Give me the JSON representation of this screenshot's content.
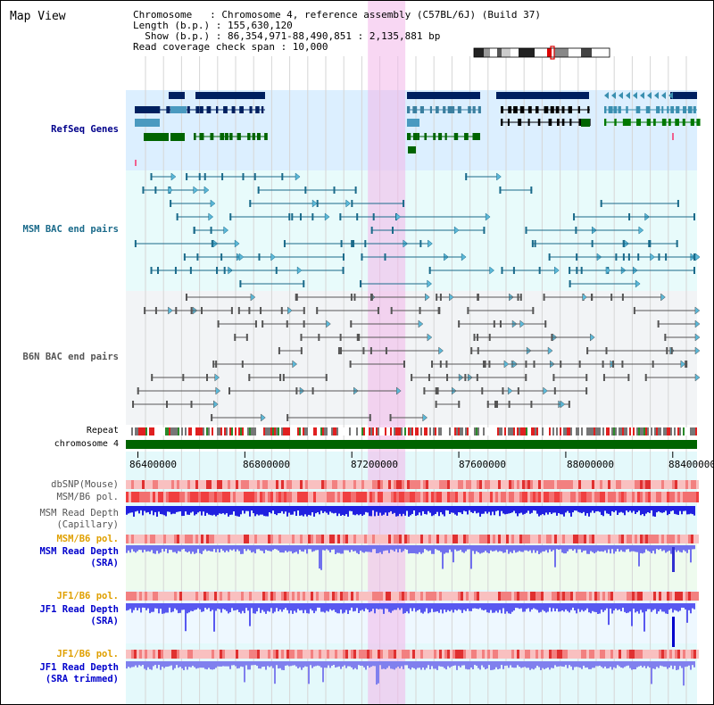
{
  "view": {
    "title": "Map View",
    "chromosome_line": "Chromosome   : Chromosome 4, reference assembly (C57BL/6J) (Build 37)",
    "length_line": "Length (b.p.) : 155,630,120",
    "show_line": "  Show (b.p.) : 86,354,971-88,490,851 : 2,135,881 bp",
    "coverage_line": "Read coverage check span : 10,000"
  },
  "tracks": {
    "refseq": {
      "label": "RefSeq Genes",
      "color": "#00008b"
    },
    "msm_bac": {
      "label": "MSM BAC end pairs",
      "color": "#1a6a8a"
    },
    "b6n_bac": {
      "label": "B6N BAC end pairs",
      "color": "#555555"
    },
    "repeat": {
      "label": "Repeat"
    },
    "chromosome": {
      "label": "chromosome 4",
      "color": "#006400"
    },
    "dbsnp": {
      "label": "dbSNP(Mouse)"
    },
    "msm_b6_pol_1": {
      "label": "MSM/B6 pol."
    },
    "msm_depth_cap": {
      "label_1": "MSM Read Depth",
      "label_2": "(Capillary)"
    },
    "msm_b6_pol_2": {
      "label": "MSM/B6 pol.",
      "color": "#e0a000"
    },
    "msm_depth_sra": {
      "label_1": "MSM Read Depth",
      "label_2": "(SRA)",
      "color": "#0000cc"
    },
    "jf1_b6_pol_1": {
      "label": "JF1/B6 pol.",
      "color": "#e0a000"
    },
    "jf1_depth_sra": {
      "label_1": "JF1 Read Depth",
      "label_2": "(SRA)",
      "color": "#0000cc"
    },
    "jf1_b6_pol_2": {
      "label": "JF1/B6 pol.",
      "color": "#e0a000"
    },
    "jf1_depth_trim": {
      "label_1": "JF1 Read Depth",
      "label_2": "(SRA trimmed)",
      "color": "#0000cc"
    }
  },
  "axis": {
    "start_bp": 86354971,
    "end_bp": 88490851,
    "ticks": [
      "86400000",
      "86800000",
      "87200000",
      "87600000",
      "88000000",
      "88400000"
    ],
    "highlight_start_bp": 87260000,
    "highlight_end_bp": 87400000
  }
}
